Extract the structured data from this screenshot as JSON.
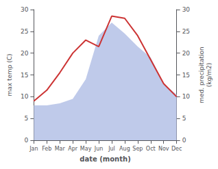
{
  "chart_data": {
    "type": "line",
    "xlabel": "date (month)",
    "ylabel": "max temp (C)",
    "y2label": "med. precipitation\n(kg/m2)",
    "categories": [
      "Jan",
      "Feb",
      "Mar",
      "Apr",
      "May",
      "Jun",
      "Jul",
      "Aug",
      "Sep",
      "Oct",
      "Nov",
      "Dec"
    ],
    "series": [
      {
        "type": "area",
        "color": "#b8c4e8",
        "axis": "y2",
        "values": [
          8.0,
          8.0,
          8.5,
          9.5,
          14.0,
          24.0,
          27.0,
          24.5,
          21.5,
          19.0,
          13.0,
          10.5
        ]
      },
      {
        "type": "line",
        "color": "#cc3333",
        "values": [
          9.0,
          11.5,
          15.5,
          20.0,
          23.0,
          21.5,
          28.5,
          28.0,
          24.0,
          18.5,
          13.0,
          10.0
        ]
      }
    ],
    "ylim": [
      0,
      30
    ],
    "yticks": [
      0,
      5,
      10,
      15,
      20,
      25,
      30
    ],
    "y2lim": [
      0,
      30
    ],
    "y2ticks": [
      0,
      5,
      10,
      15,
      20,
      25,
      30
    ],
    "grid": false
  }
}
